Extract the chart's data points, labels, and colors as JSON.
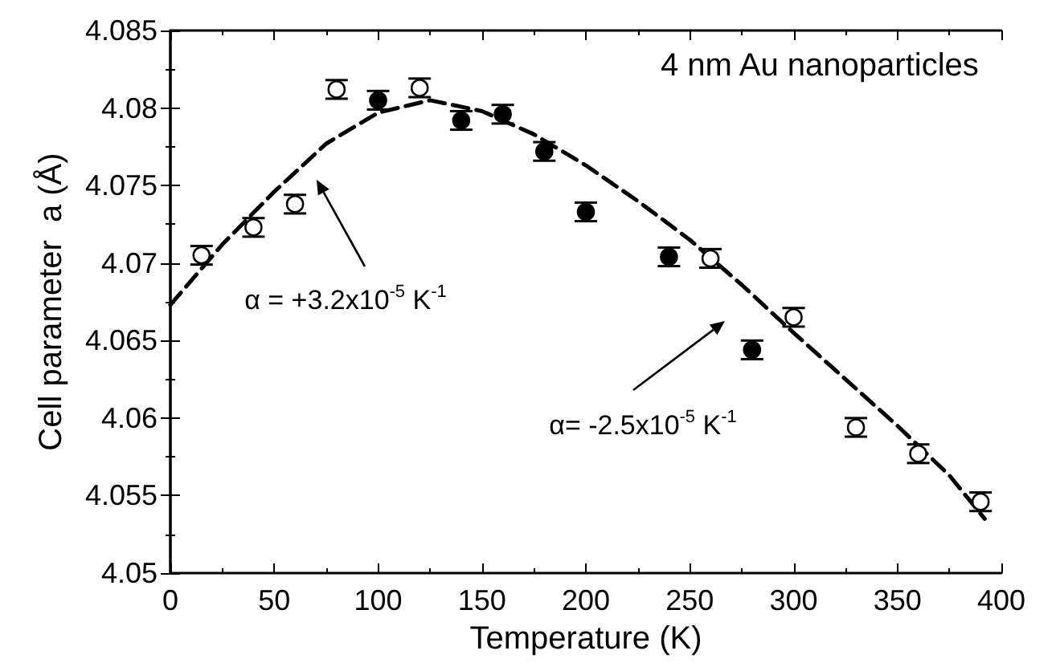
{
  "chart_data": {
    "type": "scatter",
    "title": "4 nm Au nanoparticles",
    "xlabel": "Temperature (K)",
    "ylabel": "Cell parameter  a (Å)",
    "xlim": [
      0,
      400
    ],
    "xticks": [
      0,
      50,
      100,
      150,
      200,
      250,
      300,
      350,
      400
    ],
    "ylim": [
      4.05,
      4.085
    ],
    "yticks": [
      4.05,
      4.055,
      4.06,
      4.065,
      4.07,
      4.075,
      4.08,
      4.085
    ],
    "grid": false,
    "marker": "circle",
    "series": [
      {
        "color": "#ffffff",
        "x": [
          15,
          40,
          60,
          80,
          120,
          260,
          300,
          330,
          360,
          390
        ],
        "values": [
          4.0705,
          4.0723,
          4.0738,
          4.0812,
          4.0813,
          4.0703,
          4.0665,
          4.0594,
          4.0577,
          4.0546
        ],
        "errors": [
          0.0006,
          0.0006,
          0.0006,
          0.0006,
          0.0006,
          0.0006,
          0.0006,
          0.0006,
          0.0006,
          0.0006
        ]
      },
      {
        "color": "#000000",
        "x": [
          100,
          140,
          160,
          180,
          200,
          240,
          280
        ],
        "values": [
          4.0805,
          4.0792,
          4.0796,
          4.0772,
          4.0733,
          4.0704,
          4.0644
        ],
        "errors": [
          0.0006,
          0.0006,
          0.0006,
          0.0006,
          0.0006,
          0.0006,
          0.0006
        ]
      },
      {
        "type": "line",
        "line_style": "dashed",
        "marker": "none",
        "color": "#000000",
        "x": [
          0,
          25,
          50,
          75,
          100,
          125,
          150,
          175,
          200,
          225,
          250,
          275,
          300,
          325,
          350,
          375,
          392
        ],
        "values": [
          4.0673,
          4.0712,
          4.0746,
          4.0777,
          4.0797,
          4.0805,
          4.0798,
          4.0783,
          4.0763,
          4.074,
          4.0715,
          4.0686,
          4.0655,
          4.0625,
          4.0595,
          4.0563,
          4.0535
        ]
      }
    ],
    "annotations": [
      "α = +3.2x10$^{-5}$ K$^{-1}$",
      "α= -2.5x10$^{-5}$ K$^{-1}$"
    ]
  }
}
